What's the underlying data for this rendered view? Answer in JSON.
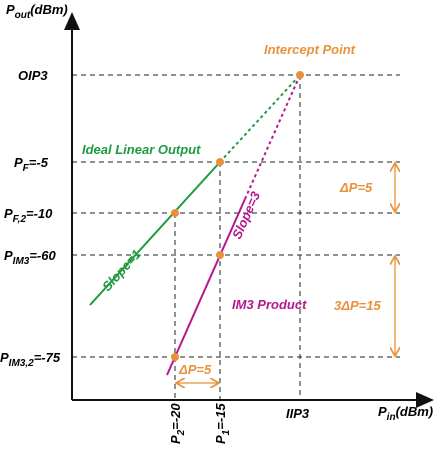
{
  "axes": {
    "y_label": {
      "base": "P",
      "sub": "out",
      "unit": "(dBm)"
    },
    "x_label": {
      "base": "P",
      "sub": "in",
      "unit": "(dBm)"
    }
  },
  "y_labels": [
    {
      "base": "OIP3"
    },
    {
      "base": "P",
      "sub": "F",
      "rest": "=-5"
    },
    {
      "base": "P",
      "sub": "F,2",
      "rest": "=-10"
    },
    {
      "base": "P",
      "sub": "IM3",
      "rest": "=-60"
    },
    {
      "base": "P",
      "sub": "IM3,2",
      "rest": "=-75"
    }
  ],
  "x_labels": [
    {
      "base": "P",
      "sub": "2",
      "rest": "=-20"
    },
    {
      "base": "P",
      "sub": "1",
      "rest": "=-15"
    },
    {
      "base": "IIP3"
    }
  ],
  "annotations": {
    "intercept": "Intercept Point",
    "linear": "Ideal Linear Output",
    "slope1": "Slope=1",
    "slope3": "Slope=3",
    "im3": "IM3 Product",
    "dp_v": "ΔP=5",
    "dp_3": "3ΔP=15",
    "dp_h": "ΔP=5"
  }
}
